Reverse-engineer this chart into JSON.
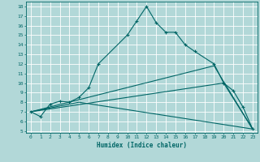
{
  "xlabel": "Humidex (Indice chaleur)",
  "bg_color": "#b2d8d8",
  "grid_color": "#ffffff",
  "line_color": "#006666",
  "xlim": [
    -0.5,
    23.5
  ],
  "ylim": [
    4.8,
    18.5
  ],
  "xticks": [
    0,
    1,
    2,
    3,
    4,
    5,
    6,
    7,
    8,
    9,
    10,
    11,
    12,
    13,
    14,
    15,
    16,
    17,
    18,
    19,
    20,
    21,
    22,
    23
  ],
  "yticks": [
    5,
    6,
    7,
    8,
    9,
    10,
    11,
    12,
    13,
    14,
    15,
    16,
    17,
    18
  ],
  "series1_x": [
    0,
    1,
    2,
    3,
    4,
    5,
    6,
    7,
    10,
    11,
    12,
    13,
    14,
    15,
    16,
    17,
    19,
    20,
    21,
    22,
    23
  ],
  "series1_y": [
    7.0,
    6.5,
    7.8,
    8.1,
    8.0,
    8.5,
    9.5,
    12.0,
    15.0,
    16.5,
    18.0,
    16.3,
    15.3,
    15.3,
    14.0,
    13.3,
    12.0,
    10.0,
    9.2,
    7.5,
    5.2
  ],
  "series2_x": [
    0,
    5,
    23
  ],
  "series2_y": [
    7.0,
    8.0,
    5.2
  ],
  "series3_x": [
    0,
    20,
    23
  ],
  "series3_y": [
    7.0,
    10.0,
    5.2
  ],
  "series4_x": [
    0,
    19,
    23
  ],
  "series4_y": [
    7.0,
    11.8,
    5.2
  ]
}
